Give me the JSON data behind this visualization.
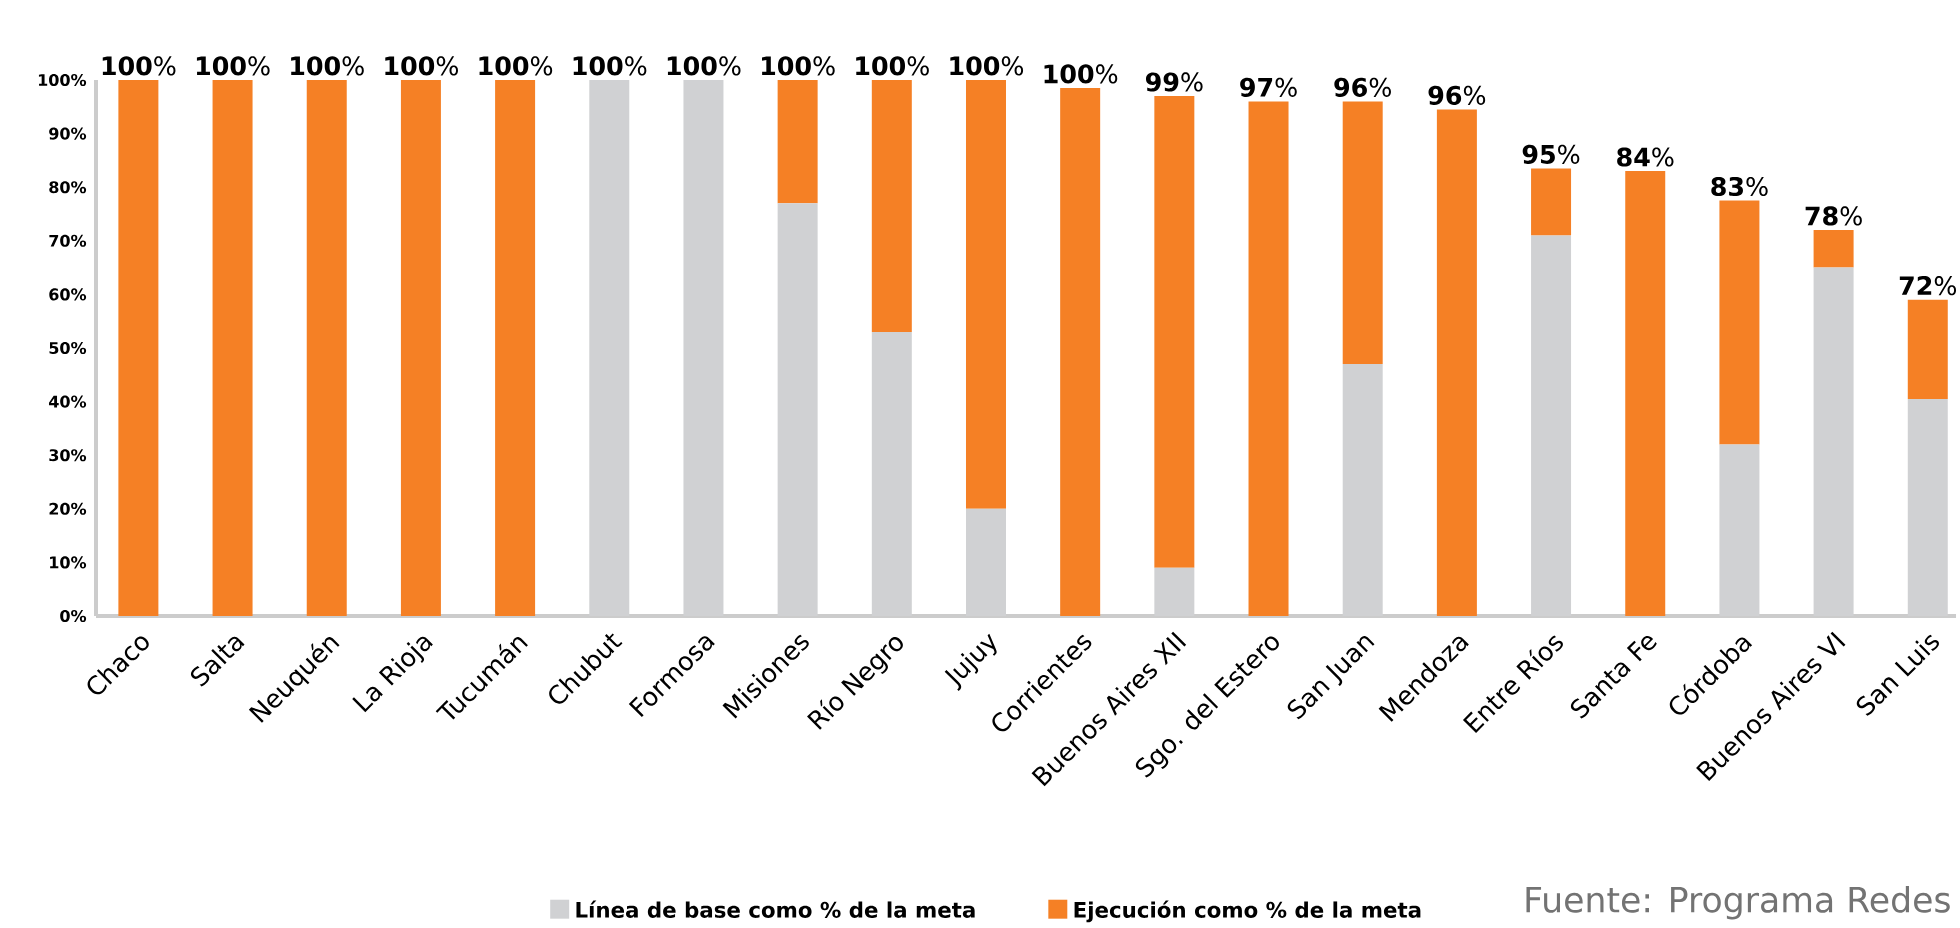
{
  "chart_data": {
    "type": "bar",
    "stacked": true,
    "categories": [
      "Chaco",
      "Salta",
      "Neuquén",
      "La Rioja",
      "Tucumán",
      "Chubut",
      "Formosa",
      "Misiones",
      "Río Negro",
      "Jujuy",
      "Corrientes",
      "Buenos Aires XII",
      "Sgo. del Estero",
      "San Juan",
      "Mendoza",
      "Entre Ríos",
      "Santa Fe",
      "Córdoba",
      "Buenos Aires VI",
      "San Luis"
    ],
    "series": [
      {
        "name": "Línea de base como % de la meta",
        "color": "#d0d1d3",
        "values": [
          0,
          0,
          0,
          0,
          0,
          100,
          100,
          77,
          53,
          20,
          0,
          9,
          0,
          47,
          0,
          71,
          0,
          32,
          65,
          40.5
        ]
      },
      {
        "name": "Ejecución como % de la meta",
        "color": "#f58025",
        "values": [
          100,
          100,
          100,
          100,
          100,
          0,
          0,
          23,
          47,
          80,
          98.5,
          88,
          96,
          49,
          94.5,
          12.5,
          83,
          45.5,
          7,
          18.5
        ]
      }
    ],
    "ylim": [
      0,
      100
    ],
    "yticks": [
      {
        "value": 0,
        "label": "0%"
      },
      {
        "value": 10,
        "label": "10%"
      },
      {
        "value": 20,
        "label": "20%"
      },
      {
        "value": 30,
        "label": "30%"
      },
      {
        "value": 40,
        "label": "40%"
      },
      {
        "value": 50,
        "label": "50%"
      },
      {
        "value": 60,
        "label": "60%"
      },
      {
        "value": 70,
        "label": "70%"
      },
      {
        "value": 80,
        "label": "80%"
      },
      {
        "value": 90,
        "label": "90%"
      },
      {
        "value": 100,
        "label": "100%"
      }
    ],
    "legend": "bottom",
    "annotations": [
      "Fuente: Programa Redes",
      {
        "text": "**100**%",
        "x": "Chaco",
        "y": 100
      },
      {
        "text": "**100**%",
        "x": "Salta",
        "y": 100
      },
      {
        "text": "**100**%",
        "x": "Neuquén",
        "y": 100
      },
      {
        "text": "**100**%",
        "x": "La Rioja",
        "y": 100
      },
      {
        "text": "**100**%",
        "x": "Tucumán",
        "y": 100
      },
      {
        "text": "**100**%",
        "x": "Chubut",
        "y": 100
      },
      {
        "text": "**100**%",
        "x": "Formosa",
        "y": 100
      },
      {
        "text": "**100**%",
        "x": "Misiones",
        "y": 100
      },
      {
        "text": "**100**%",
        "x": "Río Negro",
        "y": 100
      },
      {
        "text": "**100**%",
        "x": "Jujuy",
        "y": 100
      },
      {
        "text": "**100**%",
        "x": "Corrientes",
        "y": 98.5
      },
      {
        "text": "**99**%",
        "x": "Buenos Aires XII",
        "y": 97
      },
      {
        "text": "**97**%",
        "x": "Sgo. del Estero",
        "y": 96
      },
      {
        "text": "**96**%",
        "x": "San Juan",
        "y": 96
      },
      {
        "text": "**96**%",
        "x": "Mendoza",
        "y": 94.5
      },
      {
        "text": "**95**%",
        "x": "Entre Ríos",
        "y": 83.5
      },
      {
        "text": "**84**%",
        "x": "Santa Fe",
        "y": 83
      },
      {
        "text": "**83**%",
        "x": "Córdoba",
        "y": 77.5
      },
      {
        "text": "**78**%",
        "x": "Buenos Aires VI",
        "y": 72
      },
      {
        "text": "**72**%",
        "x": "San Luis",
        "y": 59
      }
    ]
  }
}
